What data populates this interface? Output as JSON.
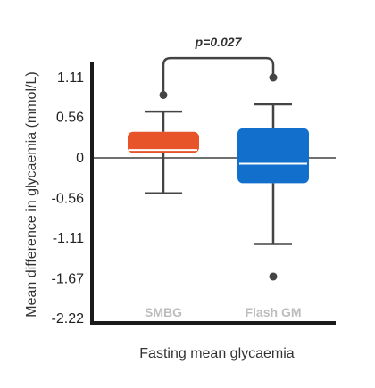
{
  "chart_data": {
    "type": "box",
    "xlabel": "Fasting mean glycaemia",
    "ylabel": "Mean difference in glycaemia (mmol/L)",
    "ylim": [
      -2.22,
      1.11
    ],
    "yticks": [
      "1.11",
      "0.56",
      "0",
      "-0.56",
      "-1.11",
      "-1.67",
      "-2.22"
    ],
    "yticks_values": [
      1.11,
      0.56,
      0,
      -0.56,
      -1.11,
      -1.67,
      -2.22
    ],
    "reference_line": 0,
    "categories": [
      "SMBG",
      "Flash GM"
    ],
    "series": [
      {
        "category": "SMBG",
        "color": "#E8542A",
        "median_color": "#ffffff",
        "whisker_low": -0.49,
        "q1": 0.07,
        "median": 0.11,
        "q3": 0.36,
        "whisker_high": 0.64,
        "outliers": [
          0.87
        ]
      },
      {
        "category": "Flash GM",
        "color": "#1270CC",
        "median_color": "#ffffff",
        "whisker_low": -1.19,
        "q1": -0.35,
        "median": -0.08,
        "q3": 0.41,
        "whisker_high": 0.74,
        "outliers": [
          -1.64
        ]
      }
    ],
    "significance": {
      "label": "p=0.027",
      "bracket_value": 1.38,
      "left_end": 0.87,
      "right_end": 1.11
    }
  },
  "colors": {
    "axis": "#1a1a1a",
    "whisker": "#444444",
    "category_label": "#bdbdbd"
  }
}
